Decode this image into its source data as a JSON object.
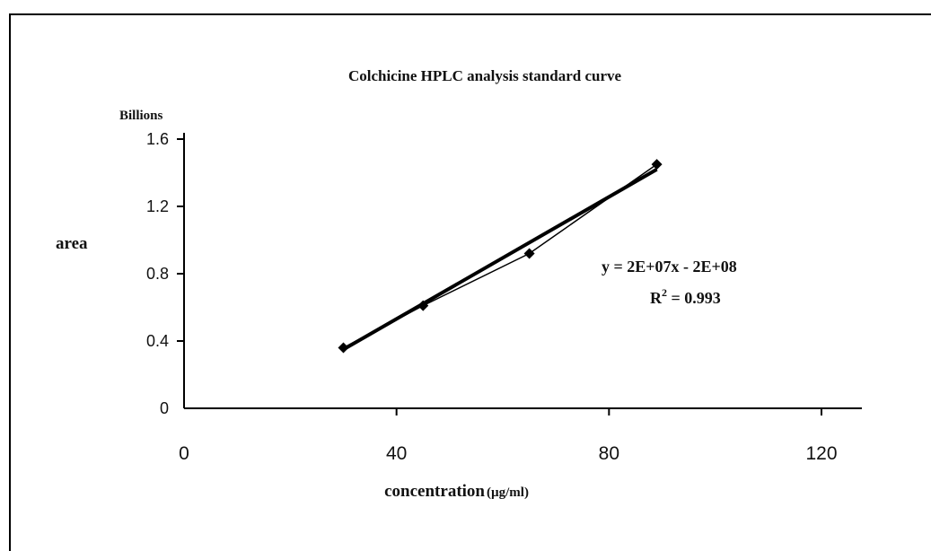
{
  "chart_data": {
    "type": "line",
    "title": "Colchicine HPLC analysis standard curve",
    "ylabel": "area",
    "yunit_label": "Billions",
    "xlabel_main": "concentration",
    "xlabel_unit": "(µg/ml)",
    "xlim": [
      0,
      120
    ],
    "ylim": [
      0,
      1.6
    ],
    "x_ticks": [
      "0",
      "40",
      "80",
      "120"
    ],
    "y_ticks": [
      "0",
      "0.4",
      "0.8",
      "1.2",
      "1.6"
    ],
    "grid": false,
    "series": [
      {
        "x": [
          30,
          45,
          65,
          89
        ],
        "y": [
          0.36,
          0.61,
          0.92,
          1.45
        ],
        "markers": true
      }
    ],
    "trendline": {
      "type": "linear",
      "x": [
        30,
        89
      ],
      "y": [
        0.35,
        1.42
      ]
    },
    "annotation": {
      "equation": "y = 2E+07x - 2E+08",
      "r2_label": "R",
      "r2_sup": "2",
      "r2_value": " = 0.993"
    }
  }
}
